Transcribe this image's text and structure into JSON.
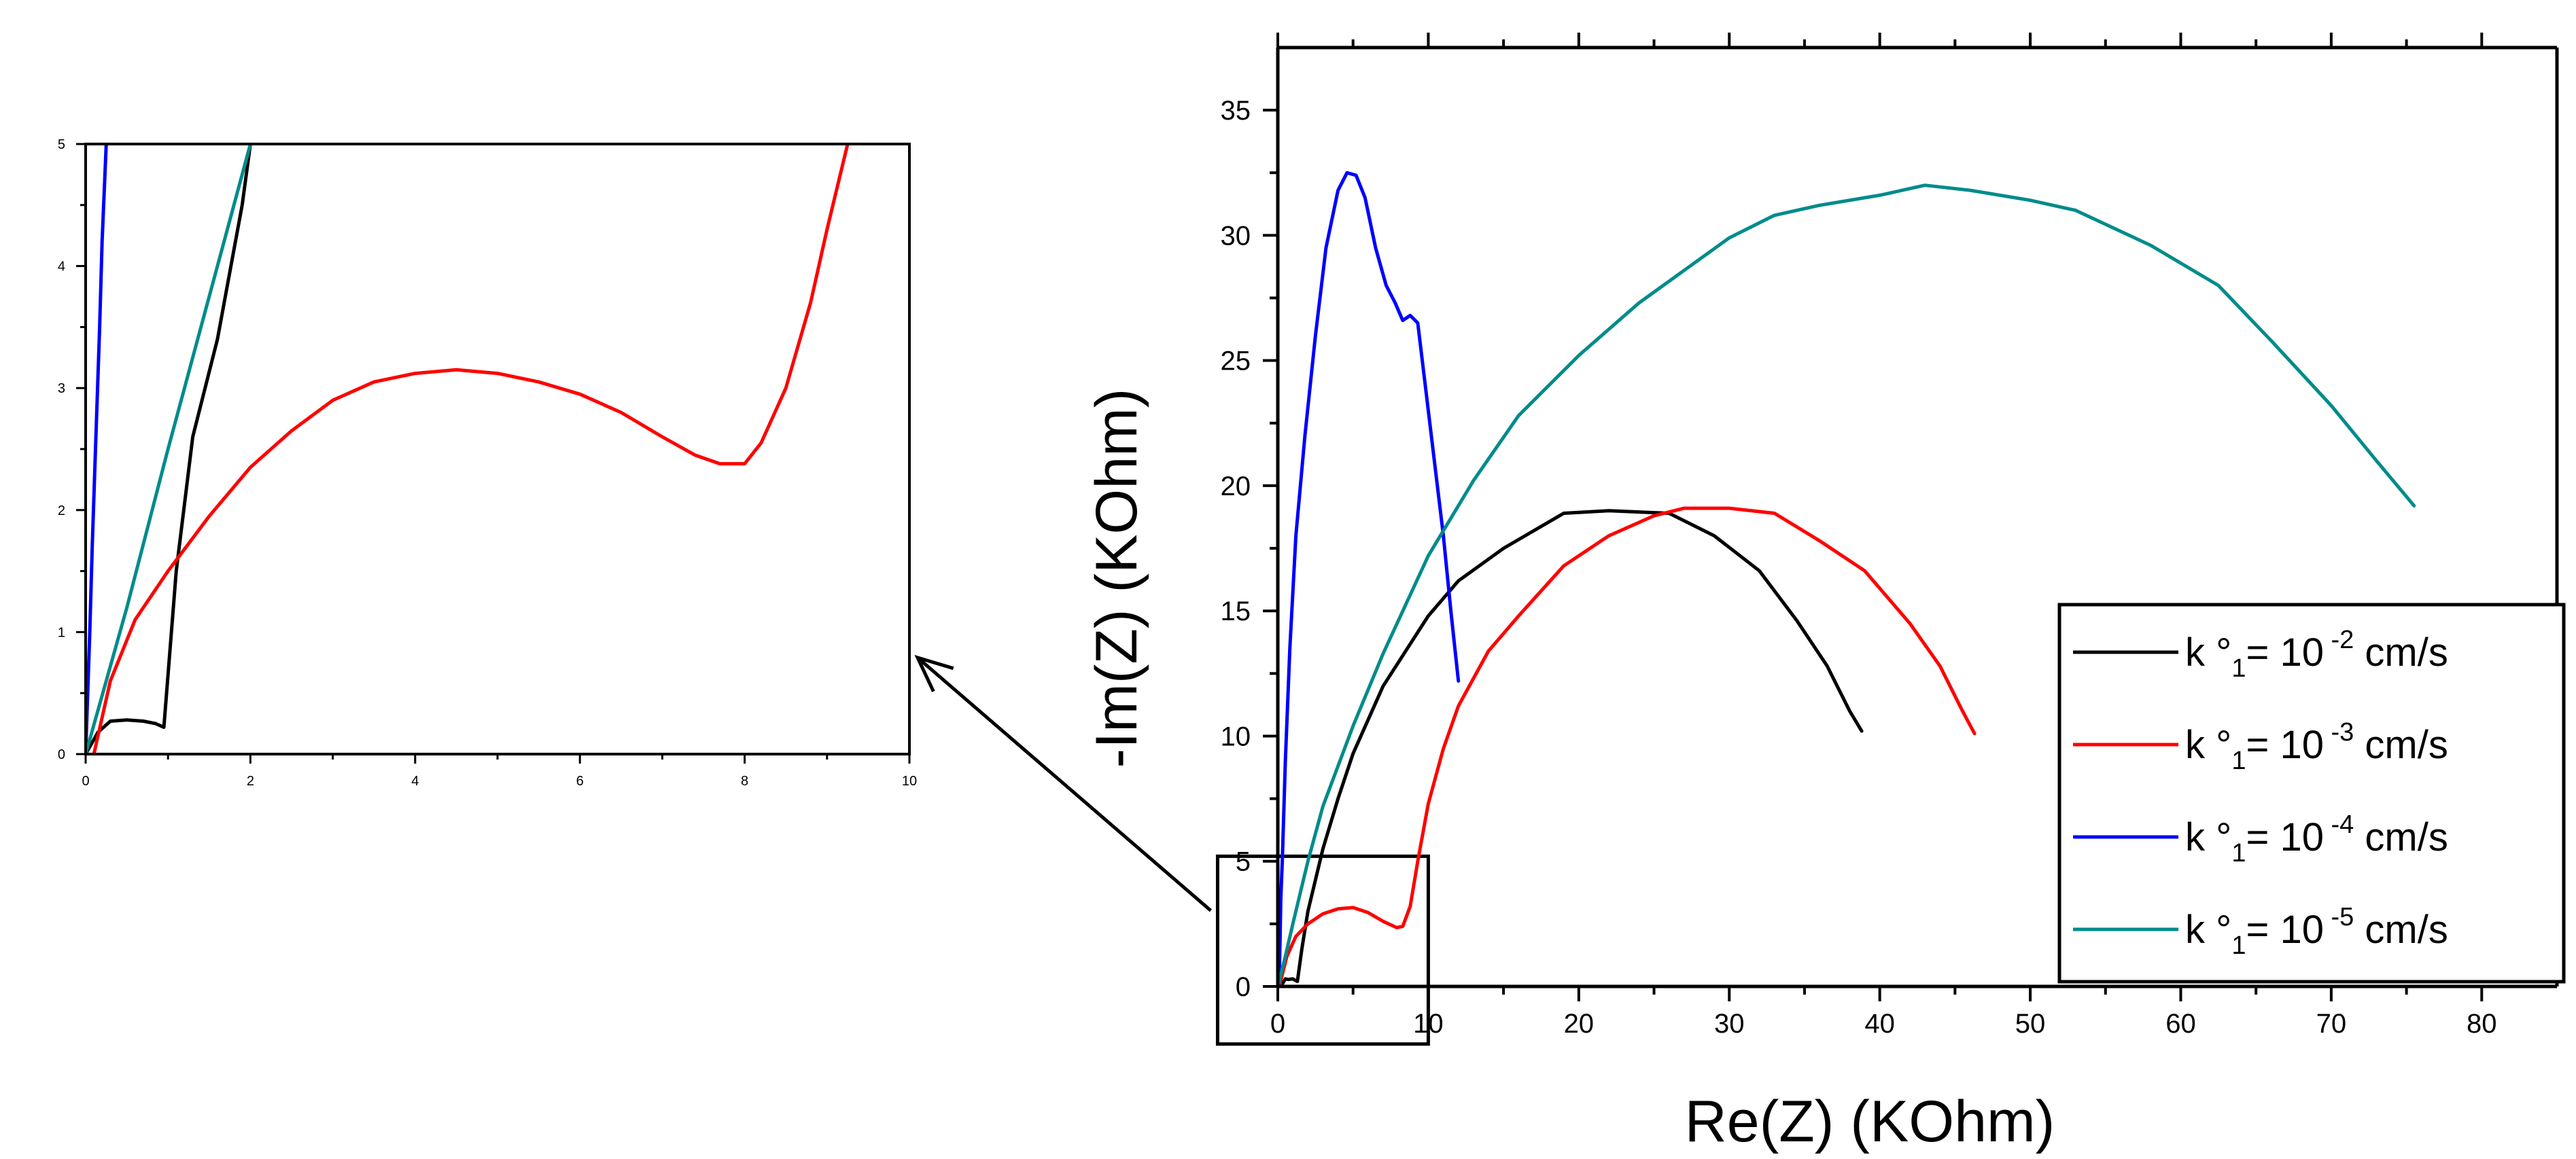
{
  "chart_data": [
    {
      "id": "main",
      "type": "line",
      "title": "",
      "xlabel": "Re(Z) (KOhm)",
      "ylabel": "-Im(Z) (KOhm)",
      "xlim": [
        0,
        85
      ],
      "ylim": [
        0,
        37.5
      ],
      "xticks": [
        0,
        10,
        20,
        30,
        40,
        50,
        60,
        70,
        80
      ],
      "yticks": [
        0,
        5,
        10,
        15,
        20,
        25,
        30,
        35
      ],
      "grid": false,
      "legend_position": "bottom-right",
      "series": [
        {
          "name": "k°1= 10-2 cm/s",
          "legend": {
            "prefix": "k",
            "deg": "°",
            "sub": "1",
            "mid": "= 10",
            "sup": "-2",
            "unit": "cm/s"
          },
          "color": "#000000",
          "x": [
            0.2,
            0.5,
            0.7,
            1.0,
            1.3,
            1.6,
            2.0,
            3.0,
            4.0,
            5.0,
            7.0,
            10.0,
            12.0,
            15.0,
            19.0,
            22.0,
            26.0,
            29.0,
            32.0,
            34.5,
            36.5,
            38.0,
            38.8
          ],
          "y": [
            0.0,
            0.3,
            0.28,
            0.3,
            0.2,
            1.5,
            3.0,
            5.5,
            7.5,
            9.3,
            12.0,
            14.8,
            16.2,
            17.5,
            18.9,
            19.0,
            18.9,
            18.0,
            16.6,
            14.6,
            12.8,
            11.0,
            10.2
          ]
        },
        {
          "name": "k°1= 10-3 cm/s",
          "legend": {
            "prefix": "k",
            "deg": "°",
            "sub": "1",
            "mid": "= 10",
            "sup": "-3",
            "unit": "cm/s"
          },
          "color": "#ff0000",
          "x": [
            0.1,
            0.6,
            1.2,
            2.0,
            3.0,
            4.0,
            5.0,
            6.0,
            7.0,
            7.9,
            8.3,
            8.8,
            9.3,
            10.0,
            11.0,
            12.0,
            14.0,
            16.0,
            19.0,
            22.0,
            25.0,
            27.0,
            30.0,
            33.0,
            36.0,
            39.0,
            42.0,
            44.0,
            45.5,
            46.3
          ],
          "y": [
            0.0,
            1.2,
            2.0,
            2.5,
            2.9,
            3.1,
            3.15,
            2.95,
            2.6,
            2.35,
            2.4,
            3.2,
            5.0,
            7.3,
            9.5,
            11.2,
            13.4,
            14.8,
            16.8,
            18.0,
            18.8,
            19.1,
            19.1,
            18.9,
            17.8,
            16.6,
            14.5,
            12.8,
            11.0,
            10.1
          ]
        },
        {
          "name": "k°1= 10-4 cm/s",
          "legend": {
            "prefix": "k",
            "deg": "°",
            "sub": "1",
            "mid": "= 10",
            "sup": "-4",
            "unit": "cm/s"
          },
          "color": "#0000ff",
          "x": [
            0.05,
            0.1,
            0.15,
            0.2,
            0.3,
            0.5,
            0.8,
            1.2,
            1.8,
            2.5,
            3.2,
            4.0,
            4.6,
            5.2,
            5.8,
            6.5,
            7.2,
            7.8,
            8.3,
            8.8,
            9.3,
            9.8,
            10.4,
            11.0,
            11.5,
            12.0
          ],
          "y": [
            0.0,
            0.5,
            1.8,
            3.5,
            5.0,
            9.0,
            13.5,
            18.0,
            22.0,
            26.0,
            29.5,
            31.8,
            32.5,
            32.4,
            31.5,
            29.5,
            28.0,
            27.3,
            26.6,
            26.8,
            26.5,
            24.0,
            21.0,
            18.0,
            15.0,
            12.2
          ]
        },
        {
          "name": "k°1= 10-5 cm/s",
          "legend": {
            "prefix": "k",
            "deg": "°",
            "sub": "1",
            "mid": "= 10",
            "sup": "-5",
            "unit": "cm/s"
          },
          "color": "#008b8b",
          "x": [
            0.0,
            0.5,
            1.0,
            2.0,
            3.0,
            5.0,
            7.0,
            10.0,
            13.0,
            16.0,
            20.0,
            24.0,
            27.0,
            30.0,
            33.0,
            36.0,
            40.0,
            43.0,
            46.0,
            50.0,
            53.0,
            58.0,
            62.5,
            66.0,
            70.0,
            73.0,
            75.5
          ],
          "y": [
            0.0,
            1.2,
            2.5,
            5.0,
            7.2,
            10.4,
            13.3,
            17.2,
            20.2,
            22.8,
            25.2,
            27.3,
            28.6,
            29.9,
            30.8,
            31.2,
            31.6,
            32.0,
            31.8,
            31.4,
            31.0,
            29.6,
            28.0,
            25.8,
            23.2,
            21.0,
            19.2
          ]
        }
      ],
      "annotations": [
        {
          "type": "zoom-box",
          "x_range": [
            -4,
            10
          ],
          "y_range": [
            -2.3,
            5.2
          ]
        },
        {
          "type": "arrow",
          "text": "",
          "points_to": "inset"
        }
      ]
    },
    {
      "id": "inset",
      "type": "line",
      "title": "",
      "xlabel": "",
      "ylabel": "",
      "xlim": [
        0,
        10
      ],
      "ylim": [
        0,
        5
      ],
      "xticks": [
        0,
        2,
        4,
        6,
        8,
        10
      ],
      "xtick_labels": [
        "0",
        "2",
        "4",
        "6",
        "8",
        "10"
      ],
      "yticks": [
        0,
        1,
        2,
        3,
        4,
        5
      ],
      "ytick_labels": [
        "0",
        "1",
        "2",
        "3",
        "4",
        "5"
      ],
      "grid": false,
      "series": [
        {
          "name": "k°1= 10-2 cm/s",
          "color": "#000000",
          "x": [
            0.0,
            0.15,
            0.3,
            0.5,
            0.7,
            0.85,
            0.95,
            1.1,
            1.3,
            1.6,
            1.9,
            2.0
          ],
          "y": [
            0.0,
            0.18,
            0.27,
            0.28,
            0.27,
            0.25,
            0.22,
            1.5,
            2.6,
            3.4,
            4.5,
            5.0
          ]
        },
        {
          "name": "k°1= 10-3 cm/s",
          "color": "#ff0000",
          "x": [
            0.1,
            0.3,
            0.6,
            1.0,
            1.5,
            2.0,
            2.5,
            3.0,
            3.5,
            4.0,
            4.5,
            5.0,
            5.5,
            6.0,
            6.5,
            7.0,
            7.4,
            7.7,
            8.0,
            8.2,
            8.5,
            8.8,
            9.0,
            9.25
          ],
          "y": [
            0.0,
            0.6,
            1.1,
            1.5,
            1.95,
            2.35,
            2.65,
            2.9,
            3.05,
            3.12,
            3.15,
            3.12,
            3.05,
            2.95,
            2.8,
            2.6,
            2.45,
            2.38,
            2.38,
            2.55,
            3.0,
            3.7,
            4.3,
            5.0
          ]
        },
        {
          "name": "k°1= 10-4 cm/s",
          "color": "#0000ff",
          "x": [
            0.0,
            0.05,
            0.08,
            0.12,
            0.17,
            0.2,
            0.25
          ],
          "y": [
            0.0,
            1.0,
            1.7,
            2.5,
            3.5,
            4.2,
            5.0
          ]
        },
        {
          "name": "k°1= 10-5 cm/s",
          "color": "#008b8b",
          "x": [
            0.0,
            0.5,
            1.0,
            1.5,
            2.0
          ],
          "y": [
            0.0,
            1.2,
            2.5,
            3.75,
            5.0
          ]
        }
      ]
    }
  ]
}
